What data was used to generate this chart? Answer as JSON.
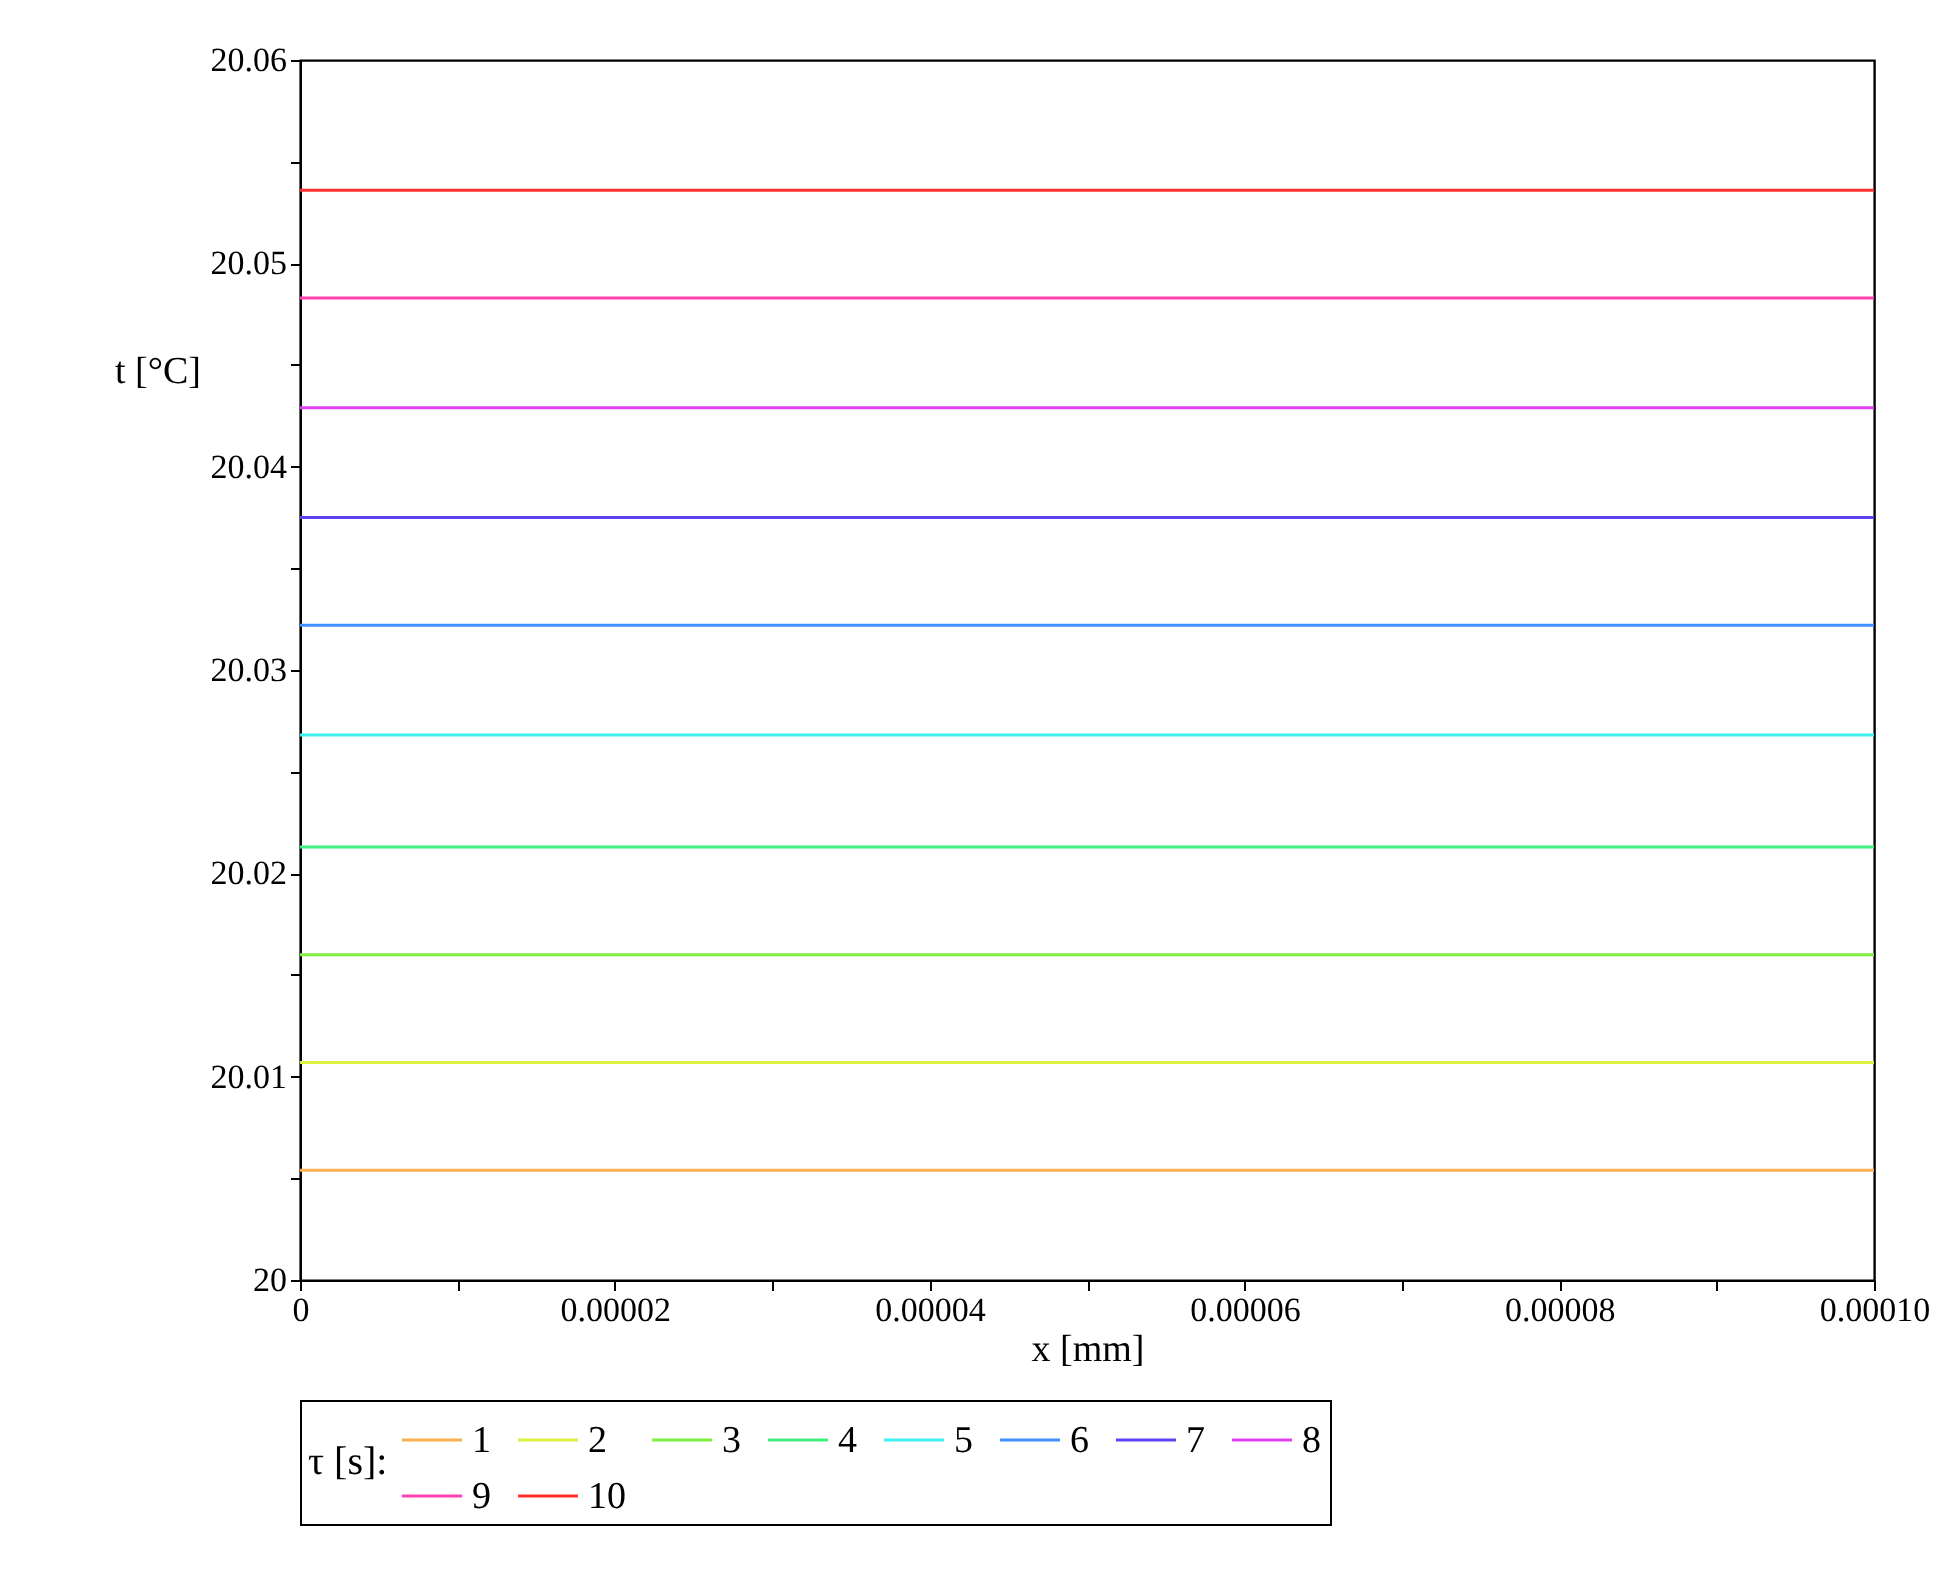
{
  "chart_data": {
    "type": "line",
    "xlabel": "x [mm]",
    "ylabel": "t [°C]",
    "legend_title": "τ [s]:",
    "legend": "bottom",
    "grid": false,
    "marker": "none",
    "line_style": "solid",
    "x": [
      0,
      0.0001
    ],
    "xlim": [
      0,
      0.0001
    ],
    "xticks": [
      0,
      {
        "value": 1e-05,
        "label": null
      },
      {
        "value": 2e-05,
        "label": "0.00002"
      },
      {
        "value": 3e-05,
        "label": null
      },
      {
        "value": 4e-05,
        "label": "0.00004"
      },
      {
        "value": 5e-05,
        "label": null
      },
      {
        "value": 6e-05,
        "label": "0.00006"
      },
      {
        "value": 7e-05,
        "label": null
      },
      {
        "value": 8e-05,
        "label": "0.00008"
      },
      {
        "value": 9e-05,
        "label": null
      },
      {
        "value": 0.0001,
        "label": "0.00010"
      }
    ],
    "ylim": [
      20,
      20.06
    ],
    "yticks": [
      20,
      {
        "value": 20.005,
        "label": null
      },
      20.01,
      {
        "value": 20.015,
        "label": null
      },
      20.02,
      {
        "value": 20.025,
        "label": null
      },
      20.03,
      {
        "value": 20.035,
        "label": null
      },
      20.04,
      {
        "value": 20.045,
        "label": null
      },
      20.05,
      {
        "value": 20.055,
        "label": null
      },
      20.06
    ],
    "series": [
      {
        "name": "1",
        "color": "#ffb050",
        "values": [
          20.0054,
          20.0054
        ]
      },
      {
        "name": "2",
        "color": "#e0f040",
        "values": [
          20.0107,
          20.0107
        ]
      },
      {
        "name": "3",
        "color": "#80f040",
        "values": [
          20.016,
          20.016
        ]
      },
      {
        "name": "4",
        "color": "#40f080",
        "values": [
          20.0213,
          20.0213
        ]
      },
      {
        "name": "5",
        "color": "#40f0f0",
        "values": [
          20.0268,
          20.0268
        ]
      },
      {
        "name": "6",
        "color": "#4090ff",
        "values": [
          20.0322,
          20.0322
        ]
      },
      {
        "name": "7",
        "color": "#6040f0",
        "values": [
          20.0375,
          20.0375
        ]
      },
      {
        "name": "8",
        "color": "#e040f0",
        "values": [
          20.0429,
          20.0429
        ]
      },
      {
        "name": "9",
        "color": "#ff40b0",
        "values": [
          20.0483,
          20.0483
        ]
      },
      {
        "name": "10",
        "color": "#ff3030",
        "values": [
          20.0536,
          20.0536
        ]
      }
    ]
  }
}
